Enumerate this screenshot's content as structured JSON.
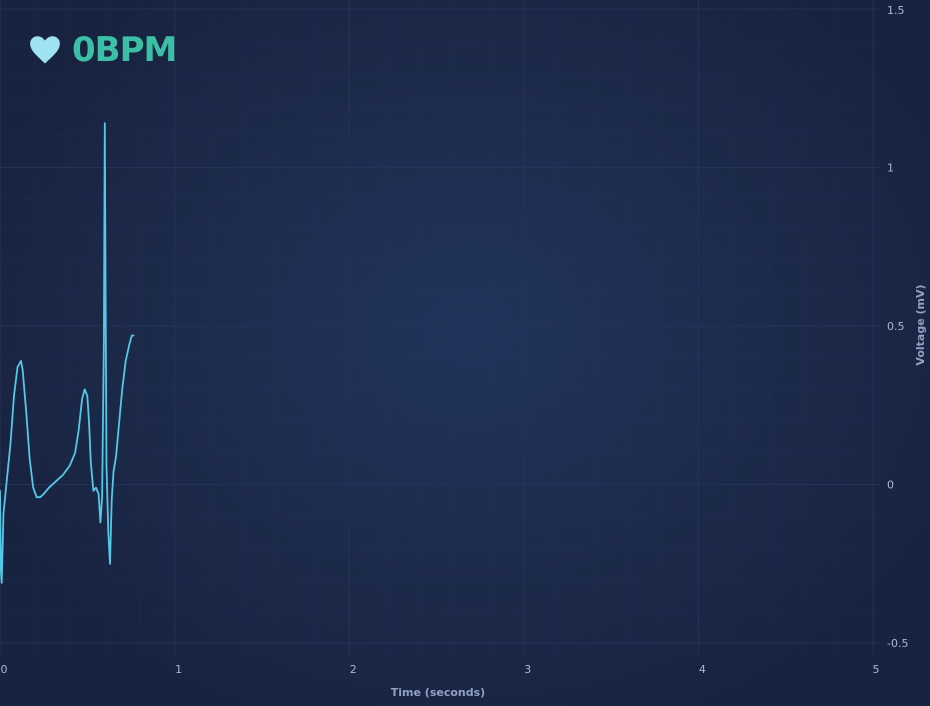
{
  "bpm": {
    "value": "0",
    "unit": "BPM",
    "display": "0BPM"
  },
  "colors": {
    "trace": "#54c8e6",
    "heart": "#9fe3f3",
    "bpm_text": "#3bbfa5",
    "grid": "#25345a",
    "axis_text": "#a9b7d3"
  },
  "icon": "heart-icon",
  "chart_data": {
    "type": "line",
    "title": "",
    "xlabel": "Time (seconds)",
    "ylabel": "Voltage (mV)",
    "xlim": [
      0,
      5
    ],
    "ylim": [
      -0.5,
      1.5
    ],
    "x_ticks": [
      0,
      1,
      2,
      3,
      4,
      5
    ],
    "x_tick_labels": [
      "0",
      "1",
      "2",
      "3",
      "4",
      "5"
    ],
    "y_ticks": [
      -0.5,
      0,
      0.5,
      1,
      1.5
    ],
    "y_tick_labels": [
      "-0.5",
      "0",
      "0.5",
      "1",
      "1.5"
    ],
    "grid": true,
    "y_axis_side": "right",
    "series": [
      {
        "x": [
          0.0,
          0.005,
          0.01,
          0.02,
          0.04,
          0.06,
          0.08,
          0.1,
          0.12,
          0.13,
          0.15,
          0.17,
          0.19,
          0.21,
          0.23,
          0.25,
          0.28,
          0.32,
          0.36,
          0.4,
          0.43,
          0.45,
          0.47,
          0.485,
          0.5,
          0.51,
          0.52,
          0.535,
          0.55,
          0.565,
          0.575,
          0.585,
          0.595,
          0.6,
          0.605,
          0.61,
          0.62,
          0.63,
          0.64,
          0.65,
          0.665,
          0.68,
          0.7,
          0.72,
          0.74,
          0.755,
          0.765
        ],
        "y": [
          -0.02,
          -0.27,
          -0.31,
          -0.09,
          0.02,
          0.13,
          0.28,
          0.37,
          0.39,
          0.36,
          0.23,
          0.08,
          -0.01,
          -0.04,
          -0.04,
          -0.03,
          -0.01,
          0.01,
          0.03,
          0.06,
          0.1,
          0.17,
          0.27,
          0.3,
          0.28,
          0.2,
          0.07,
          -0.02,
          -0.01,
          -0.03,
          -0.12,
          -0.04,
          0.46,
          1.14,
          0.6,
          0.06,
          -0.15,
          -0.25,
          -0.05,
          0.04,
          0.09,
          0.18,
          0.3,
          0.39,
          0.44,
          0.47,
          0.47
        ]
      }
    ]
  }
}
